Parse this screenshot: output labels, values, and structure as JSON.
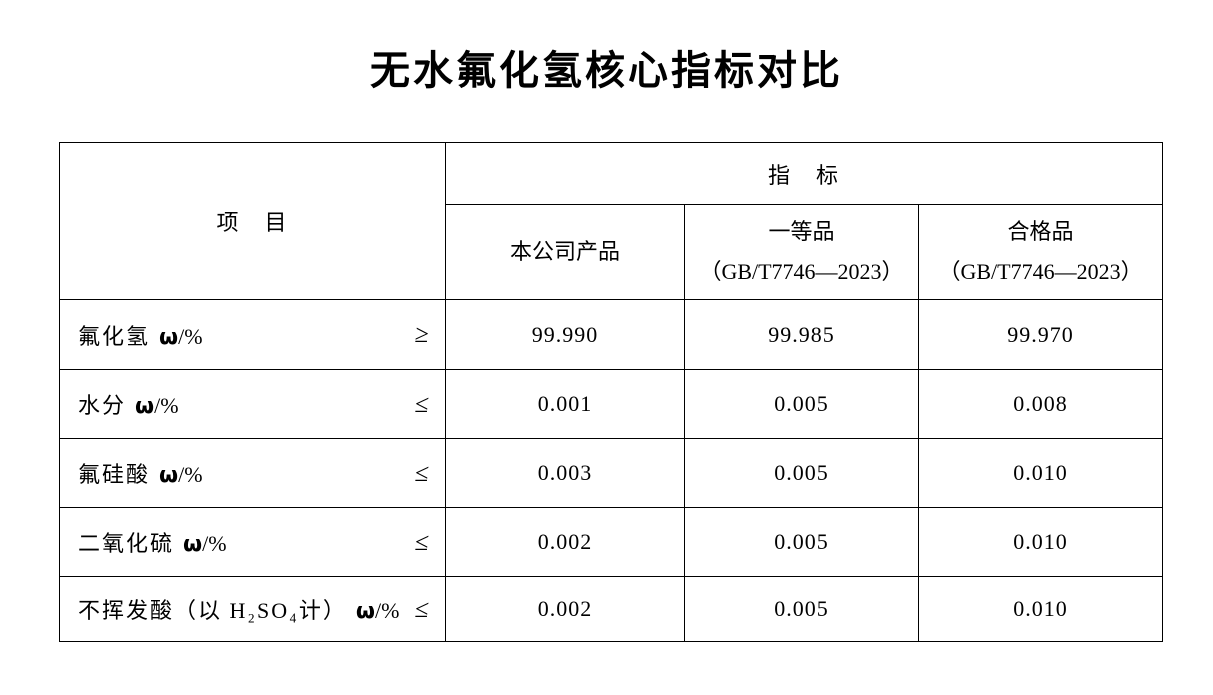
{
  "page": {
    "title": "无水氟化氢核心指标对比"
  },
  "table": {
    "header": {
      "item": "项　目",
      "indicator": "指　标",
      "columns": [
        {
          "line1": "本公司产品",
          "line2": ""
        },
        {
          "line1": "一等品",
          "line2": "（GB/T7746—2023）"
        },
        {
          "line1": "合格品",
          "line2": "（GB/T7746—2023）"
        }
      ]
    },
    "unit_omega": "ω",
    "unit_suffix": "/%",
    "rows": [
      {
        "name": "氟化氢",
        "relation": "≥",
        "values": [
          "99.990",
          "99.985",
          "99.970"
        ]
      },
      {
        "name": "水分",
        "relation": "≤",
        "values": [
          "0.001",
          "0.005",
          "0.008"
        ]
      },
      {
        "name": "氟硅酸",
        "relation": "≤",
        "values": [
          "0.003",
          "0.005",
          "0.010"
        ]
      },
      {
        "name": "二氧化硫",
        "relation": "≤",
        "values": [
          "0.002",
          "0.005",
          "0.010"
        ]
      },
      {
        "name": "不挥发酸（以 H₂SO₄计）",
        "relation": "≤",
        "values": [
          "0.002",
          "0.005",
          "0.010"
        ]
      }
    ]
  }
}
